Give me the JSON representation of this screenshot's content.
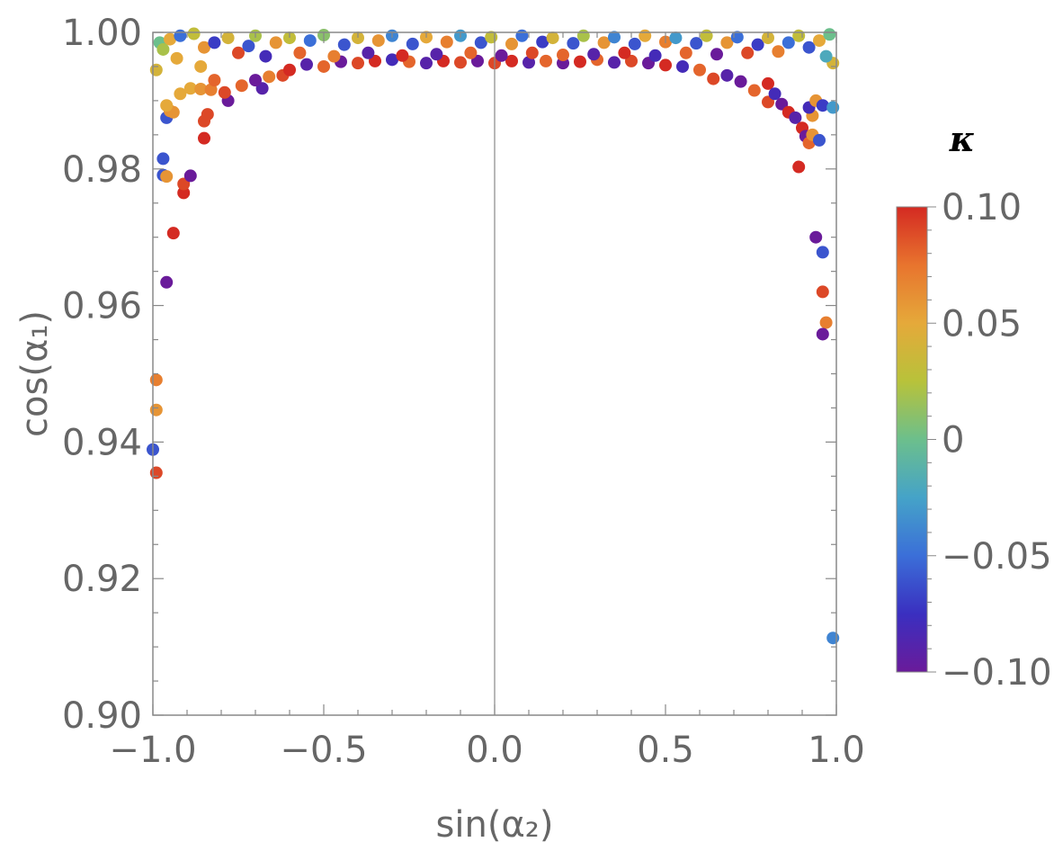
{
  "chart_data": {
    "type": "scatter",
    "title": "",
    "xlabel": "sin(α₂)",
    "ylabel": "cos(α₁)",
    "xlim": [
      -1.0,
      1.0
    ],
    "ylim": [
      0.9,
      1.0
    ],
    "x_ticks": [
      {
        "value": -1.0,
        "label": "−1.0"
      },
      {
        "value": -0.5,
        "label": "−0.5"
      },
      {
        "value": 0.0,
        "label": "0.0"
      },
      {
        "value": 0.5,
        "label": "0.5"
      },
      {
        "value": 1.0,
        "label": "1.0"
      }
    ],
    "y_ticks": [
      {
        "value": 0.9,
        "label": "0.90"
      },
      {
        "value": 0.92,
        "label": "0.92"
      },
      {
        "value": 0.94,
        "label": "0.94"
      },
      {
        "value": 0.96,
        "label": "0.96"
      },
      {
        "value": 0.98,
        "label": "0.98"
      },
      {
        "value": 1.0,
        "label": "1.00"
      }
    ],
    "colorbar": {
      "title": "κ",
      "range": [
        -0.1,
        0.1
      ],
      "ticks": [
        {
          "value": 0.1,
          "label": "0.10"
        },
        {
          "value": 0.05,
          "label": "0.05"
        },
        {
          "value": 0.0,
          "label": "0"
        },
        {
          "value": -0.05,
          "label": "−0.05"
        },
        {
          "value": -0.1,
          "label": "−0.10"
        }
      ],
      "stops": [
        "#6a1b9a",
        "#3a2fc0",
        "#3b6fd8",
        "#45a3c8",
        "#6cbf8c",
        "#b8c23a",
        "#e5a93a",
        "#e8742e",
        "#d42a22"
      ]
    },
    "points_note": "Dense band near cos(α1)=0.995–1.000 across x; sparse outliers near x=±1",
    "points": [
      [
        -1.0,
        0.9389,
        -0.06
      ],
      [
        -0.99,
        0.9355,
        0.09
      ],
      [
        -0.99,
        0.9447,
        0.06
      ],
      [
        -0.99,
        0.9491,
        0.07
      ],
      [
        -0.96,
        0.9634,
        -0.1
      ],
      [
        -0.94,
        0.9706,
        0.1
      ],
      [
        -0.91,
        0.9765,
        0.1
      ],
      [
        -0.91,
        0.9778,
        0.09
      ],
      [
        -0.89,
        0.979,
        -0.1
      ],
      [
        -0.97,
        0.9791,
        -0.06
      ],
      [
        -0.96,
        0.9789,
        0.06
      ],
      [
        -0.97,
        0.9815,
        -0.06
      ],
      [
        -0.85,
        0.9845,
        0.1
      ],
      [
        -0.85,
        0.987,
        0.09
      ],
      [
        -0.84,
        0.988,
        0.09
      ],
      [
        -0.96,
        0.9875,
        -0.06
      ],
      [
        -0.95,
        0.9885,
        0.06
      ],
      [
        -0.94,
        0.9883,
        0.06
      ],
      [
        -0.96,
        0.9893,
        0.05
      ],
      [
        -0.92,
        0.991,
        0.05
      ],
      [
        -0.89,
        0.9918,
        0.05
      ],
      [
        -0.86,
        0.9917,
        0.06
      ],
      [
        -0.83,
        0.9916,
        0.07
      ],
      [
        -0.78,
        0.99,
        -0.1
      ],
      [
        -0.79,
        0.9912,
        0.09
      ],
      [
        -0.82,
        0.993,
        0.08
      ],
      [
        -0.86,
        0.995,
        0.05
      ],
      [
        -0.99,
        0.9945,
        0.04
      ],
      [
        -0.74,
        0.9922,
        0.08
      ],
      [
        -0.68,
        0.9918,
        -0.09
      ],
      [
        -0.7,
        0.993,
        -0.1
      ],
      [
        -0.66,
        0.9935,
        0.07
      ],
      [
        -0.62,
        0.9937,
        0.09
      ],
      [
        -0.6,
        0.9945,
        0.1
      ],
      [
        -0.55,
        0.9953,
        -0.09
      ],
      [
        -0.5,
        0.995,
        0.08
      ],
      [
        -0.45,
        0.9957,
        -0.1
      ],
      [
        -0.4,
        0.9955,
        0.09
      ],
      [
        -0.35,
        0.9958,
        0.1
      ],
      [
        -0.3,
        0.996,
        -0.08
      ],
      [
        -0.25,
        0.9957,
        0.08
      ],
      [
        -0.2,
        0.9955,
        -0.09
      ],
      [
        -0.15,
        0.9958,
        0.1
      ],
      [
        -0.1,
        0.9956,
        0.09
      ],
      [
        -0.05,
        0.9958,
        -0.1
      ],
      [
        0.0,
        0.9955,
        0.09
      ],
      [
        0.05,
        0.9958,
        0.1
      ],
      [
        0.1,
        0.9956,
        -0.09
      ],
      [
        0.15,
        0.9958,
        0.08
      ],
      [
        0.2,
        0.9955,
        -0.1
      ],
      [
        0.25,
        0.9957,
        0.1
      ],
      [
        0.3,
        0.996,
        0.08
      ],
      [
        0.35,
        0.9956,
        -0.09
      ],
      [
        0.4,
        0.9958,
        0.09
      ],
      [
        0.45,
        0.9955,
        -0.1
      ],
      [
        0.5,
        0.9952,
        0.1
      ],
      [
        0.55,
        0.995,
        -0.08
      ],
      [
        0.6,
        0.9945,
        0.08
      ],
      [
        0.64,
        0.9932,
        0.09
      ],
      [
        0.68,
        0.9937,
        -0.09
      ],
      [
        0.72,
        0.9928,
        -0.1
      ],
      [
        0.76,
        0.9915,
        0.08
      ],
      [
        0.8,
        0.9925,
        0.1
      ],
      [
        0.8,
        0.9898,
        0.09
      ],
      [
        0.82,
        0.991,
        -0.08
      ],
      [
        0.84,
        0.9895,
        -0.1
      ],
      [
        0.86,
        0.9883,
        0.1
      ],
      [
        0.88,
        0.9875,
        -0.09
      ],
      [
        0.9,
        0.986,
        0.1
      ],
      [
        0.91,
        0.9848,
        -0.1
      ],
      [
        0.92,
        0.9838,
        0.08
      ],
      [
        0.93,
        0.985,
        0.06
      ],
      [
        0.89,
        0.9803,
        0.1
      ],
      [
        0.95,
        0.9842,
        -0.06
      ],
      [
        0.93,
        0.9878,
        0.06
      ],
      [
        0.92,
        0.989,
        -0.08
      ],
      [
        0.94,
        0.99,
        0.06
      ],
      [
        0.96,
        0.9893,
        -0.07
      ],
      [
        0.99,
        0.989,
        -0.03
      ],
      [
        0.94,
        0.97,
        -0.1
      ],
      [
        0.96,
        0.9678,
        -0.06
      ],
      [
        0.96,
        0.962,
        0.09
      ],
      [
        0.97,
        0.9575,
        0.07
      ],
      [
        0.96,
        0.9558,
        -0.1
      ],
      [
        0.99,
        0.9113,
        -0.04
      ],
      [
        -0.98,
        0.9985,
        0.0
      ],
      [
        -0.95,
        0.999,
        0.05
      ],
      [
        -0.92,
        0.9995,
        -0.05
      ],
      [
        -0.88,
        0.9998,
        0.03
      ],
      [
        -0.85,
        0.9978,
        0.06
      ],
      [
        -0.82,
        0.9985,
        -0.07
      ],
      [
        -0.78,
        0.9992,
        0.04
      ],
      [
        -0.75,
        0.997,
        0.09
      ],
      [
        -0.72,
        0.998,
        -0.06
      ],
      [
        -0.7,
        0.9995,
        0.02
      ],
      [
        -0.67,
        0.9965,
        -0.08
      ],
      [
        -0.64,
        0.9985,
        0.06
      ],
      [
        -0.6,
        0.9992,
        0.03
      ],
      [
        -0.57,
        0.997,
        0.08
      ],
      [
        -0.54,
        0.9988,
        -0.05
      ],
      [
        -0.5,
        0.9996,
        0.01
      ],
      [
        -0.47,
        0.9965,
        0.07
      ],
      [
        -0.44,
        0.9982,
        -0.06
      ],
      [
        -0.4,
        0.9992,
        0.04
      ],
      [
        -0.37,
        0.997,
        -0.09
      ],
      [
        -0.34,
        0.9988,
        0.06
      ],
      [
        -0.3,
        0.9995,
        -0.04
      ],
      [
        -0.27,
        0.9966,
        0.1
      ],
      [
        -0.24,
        0.9983,
        -0.06
      ],
      [
        -0.2,
        0.9993,
        0.05
      ],
      [
        -0.17,
        0.9968,
        -0.09
      ],
      [
        -0.14,
        0.9986,
        0.07
      ],
      [
        -0.1,
        0.9995,
        -0.03
      ],
      [
        -0.07,
        0.997,
        0.08
      ],
      [
        -0.04,
        0.9985,
        -0.06
      ],
      [
        -0.01,
        0.9993,
        0.03
      ],
      [
        0.02,
        0.9966,
        -0.1
      ],
      [
        0.05,
        0.9983,
        0.06
      ],
      [
        0.08,
        0.9995,
        -0.05
      ],
      [
        0.11,
        0.997,
        0.09
      ],
      [
        0.14,
        0.9986,
        -0.07
      ],
      [
        0.17,
        0.9992,
        0.04
      ],
      [
        0.2,
        0.9967,
        0.08
      ],
      [
        0.23,
        0.9984,
        -0.06
      ],
      [
        0.26,
        0.9995,
        0.02
      ],
      [
        0.29,
        0.9968,
        -0.09
      ],
      [
        0.32,
        0.9985,
        0.06
      ],
      [
        0.35,
        0.9993,
        -0.04
      ],
      [
        0.38,
        0.997,
        0.1
      ],
      [
        0.41,
        0.9983,
        -0.06
      ],
      [
        0.44,
        0.9995,
        0.05
      ],
      [
        0.47,
        0.9966,
        -0.08
      ],
      [
        0.5,
        0.9986,
        0.07
      ],
      [
        0.53,
        0.9992,
        -0.03
      ],
      [
        0.56,
        0.997,
        0.08
      ],
      [
        0.59,
        0.9984,
        -0.06
      ],
      [
        0.62,
        0.9995,
        0.03
      ],
      [
        0.65,
        0.9968,
        -0.1
      ],
      [
        0.68,
        0.9985,
        0.06
      ],
      [
        0.71,
        0.9993,
        -0.05
      ],
      [
        0.74,
        0.997,
        0.09
      ],
      [
        0.77,
        0.9982,
        -0.07
      ],
      [
        0.8,
        0.9992,
        0.04
      ],
      [
        0.83,
        0.9972,
        0.07
      ],
      [
        0.86,
        0.9985,
        -0.05
      ],
      [
        0.89,
        0.9995,
        0.03
      ],
      [
        0.92,
        0.9978,
        -0.06
      ],
      [
        0.95,
        0.9988,
        0.05
      ],
      [
        0.98,
        0.9997,
        0.0
      ],
      [
        0.99,
        0.9955,
        0.04
      ],
      [
        -0.93,
        0.9962,
        0.05
      ],
      [
        0.97,
        0.9965,
        -0.02
      ],
      [
        -0.97,
        0.9975,
        0.02
      ]
    ]
  }
}
